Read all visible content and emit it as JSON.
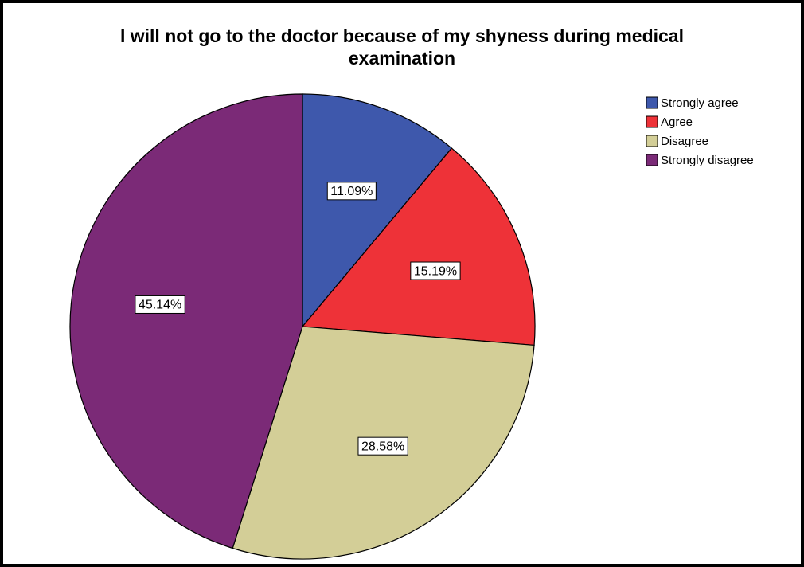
{
  "chart_data": {
    "type": "pie",
    "title": [
      "I will not go to the doctor because of my shyness during medical",
      "examination"
    ],
    "categories": [
      "Strongly agree",
      "Agree",
      "Disagree",
      "Strongly disagree"
    ],
    "values": [
      11.09,
      15.19,
      28.58,
      45.14
    ],
    "value_labels": [
      "11.09%",
      "15.19%",
      "28.58%",
      "45.14%"
    ],
    "colors": [
      "#3e58ac",
      "#ee3238",
      "#d3ce97",
      "#7b2a77"
    ],
    "legend": "top-right"
  }
}
